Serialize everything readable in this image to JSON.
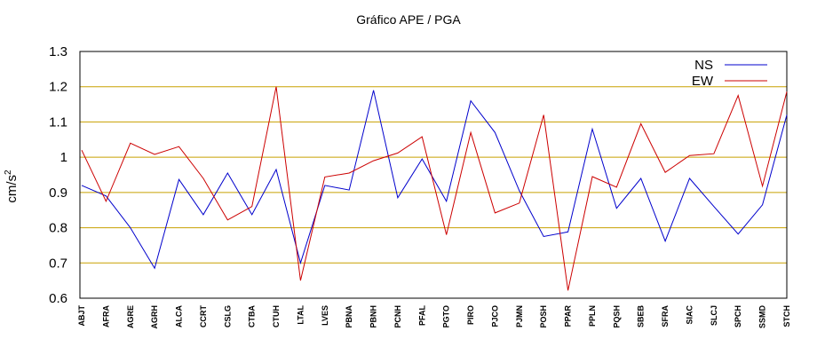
{
  "chart_data": {
    "type": "line",
    "title": "Gráfico  APE / PGA",
    "ylabel": "cm/s",
    "ylabel_superscript": "2",
    "xlabel": "",
    "ylim": [
      0.6,
      1.3
    ],
    "yticks": [
      "0.6",
      "0.7",
      "0.8",
      "0.9",
      "1",
      "1.1",
      "1.2",
      "1.3"
    ],
    "grid": true,
    "grid_color": "#c8a000",
    "legend_position": "top-right",
    "categories": [
      "ABJT",
      "AFRA",
      "AGRE",
      "AGRH",
      "ALCA",
      "CCRT",
      "CSLG",
      "CTBA",
      "CTUH",
      "LTAL",
      "LVES",
      "PBNA",
      "PBNH",
      "PCNH",
      "PFAL",
      "PGTO",
      "PIRO",
      "PJCO",
      "PJMN",
      "POSH",
      "PPAR",
      "PPLN",
      "PQSH",
      "SBEB",
      "SFRA",
      "SIAC",
      "SLCJ",
      "SPCH",
      "SSMD",
      "STCH"
    ],
    "series": [
      {
        "name": "NS",
        "color": "#0000cc",
        "values": [
          0.92,
          0.89,
          0.8,
          0.685,
          0.937,
          0.837,
          0.955,
          0.837,
          0.965,
          0.7,
          0.92,
          0.907,
          1.19,
          0.885,
          0.995,
          0.875,
          1.16,
          1.07,
          0.905,
          0.775,
          0.788,
          1.08,
          0.855,
          0.94,
          0.762,
          0.94,
          0.86,
          0.782,
          0.865,
          1.12
        ]
      },
      {
        "name": "EW",
        "color": "#cc0000",
        "values": [
          1.02,
          0.875,
          1.04,
          1.008,
          1.03,
          0.94,
          0.822,
          0.86,
          1.2,
          0.65,
          0.944,
          0.955,
          0.99,
          1.012,
          1.058,
          0.78,
          1.07,
          0.842,
          0.87,
          1.12,
          0.622,
          0.945,
          0.915,
          1.095,
          0.957,
          1.005,
          1.01,
          1.175,
          0.918,
          1.186
        ]
      }
    ]
  }
}
